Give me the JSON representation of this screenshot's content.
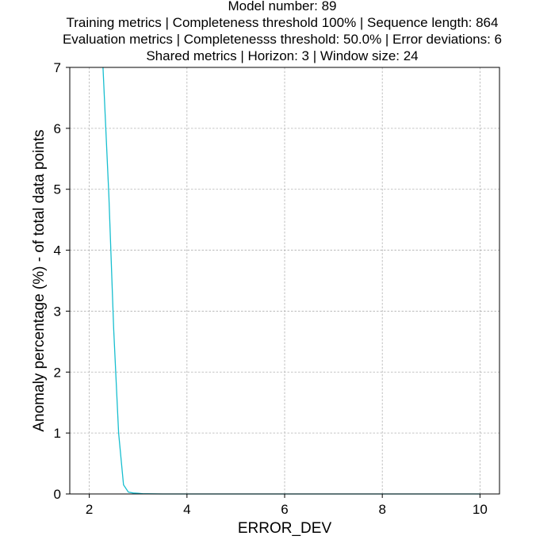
{
  "chart_data": {
    "type": "line",
    "title_lines": [
      "Model number: 89",
      "Training metrics | Completeness threshold 100% | Sequence length: 864",
      "Evaluation metrics | Completenesss threshold: 50.0% | Error deviations: 6",
      "Shared metrics | Horizon: 3 | Window size: 24"
    ],
    "xlabel": "ERROR_DEV",
    "ylabel": "Anomaly percentage (%) - of total data points",
    "xlim": [
      1.6,
      10.4
    ],
    "ylim": [
      0,
      7
    ],
    "xticks": [
      2,
      4,
      6,
      8,
      10
    ],
    "yticks": [
      0,
      1,
      2,
      3,
      4,
      5,
      6,
      7
    ],
    "xtick_labels": [
      "2",
      "4",
      "6",
      "8",
      "10"
    ],
    "ytick_labels": [
      "0",
      "1",
      "2",
      "3",
      "4",
      "5",
      "6",
      "7"
    ],
    "grid": true,
    "series": [
      {
        "color": "#17becf",
        "x": [
          2.28,
          2.4,
          2.5,
          2.6,
          2.7,
          2.8,
          2.9,
          3.0,
          3.1,
          3.2,
          3.5,
          4.0,
          5.0,
          6.0,
          7.0,
          8.0,
          9.0,
          10.0
        ],
        "y": [
          7.0,
          4.9,
          2.7,
          1.0,
          0.15,
          0.03,
          0.015,
          0.01,
          0.003,
          0.002,
          0.0,
          0.0,
          0.0,
          0.0,
          0.0,
          0.0,
          0.0,
          0.0
        ]
      }
    ]
  }
}
